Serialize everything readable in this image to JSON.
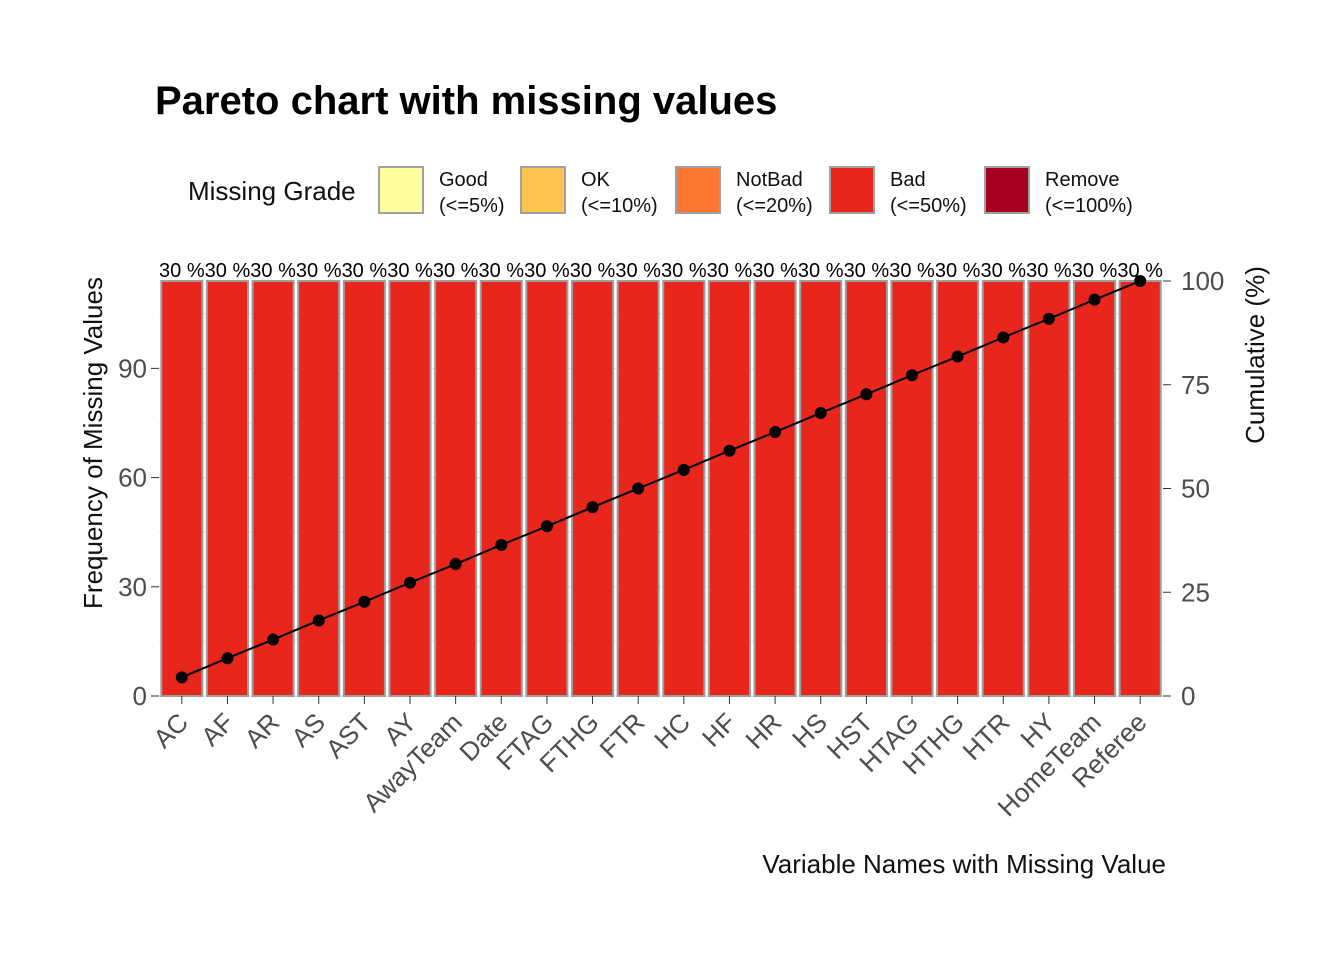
{
  "chart_data": {
    "type": "bar",
    "title": "Pareto chart with missing values",
    "xlabel": "Variable Names with Missing Value",
    "ylabel": "Frequency of Missing Values",
    "ylabel_right": "Cumulative (%)",
    "categories": [
      "AC",
      "AF",
      "AR",
      "AS",
      "AST",
      "AY",
      "AwayTeam",
      "Date",
      "FTAG",
      "FTHG",
      "FTR",
      "HC",
      "HF",
      "HR",
      "HS",
      "HST",
      "HTAG",
      "HTHG",
      "HTR",
      "HY",
      "HomeTeam",
      "Referee"
    ],
    "values": [
      114,
      114,
      114,
      114,
      114,
      114,
      114,
      114,
      114,
      114,
      114,
      114,
      114,
      114,
      114,
      114,
      114,
      114,
      114,
      114,
      114,
      114
    ],
    "bar_labels": [
      "30 %",
      "30 %",
      "30 %",
      "30 %",
      "30 %",
      "30 %",
      "30 %",
      "30 %",
      "30 %",
      "30 %",
      "30 %",
      "30 %",
      "30 %",
      "30 %",
      "30 %",
      "30 %",
      "30 %",
      "30 %",
      "30 %",
      "30 %",
      "30 %",
      "30 %"
    ],
    "cumulative": [
      4.5,
      9.1,
      13.6,
      18.2,
      22.7,
      27.3,
      31.8,
      36.4,
      40.9,
      45.5,
      50.0,
      54.5,
      59.1,
      63.6,
      68.2,
      72.7,
      77.3,
      81.8,
      86.4,
      90.9,
      95.5,
      100.0
    ],
    "ylim": [
      0,
      114
    ],
    "yticks": [
      0,
      30,
      60,
      90
    ],
    "ylim_right": [
      0,
      100
    ],
    "yticks_right": [
      0,
      25,
      50,
      75,
      100
    ],
    "bar_color": "#E8261C",
    "bar_border": "#9e9e9e",
    "line_color": "#000000",
    "legend": {
      "title": "Missing Grade",
      "position": "top",
      "items": [
        {
          "label": "Good",
          "sub": "(<=5%)",
          "color": "#FFFFA0"
        },
        {
          "label": "OK",
          "sub": "(<=10%)",
          "color": "#FEC44F"
        },
        {
          "label": "NotBad",
          "sub": "(<=20%)",
          "color": "#FC7630"
        },
        {
          "label": "Bad",
          "sub": "(<=50%)",
          "color": "#E8261C"
        },
        {
          "label": "Remove",
          "sub": "(<=100%)",
          "color": "#A50021"
        }
      ]
    },
    "grid": true
  }
}
